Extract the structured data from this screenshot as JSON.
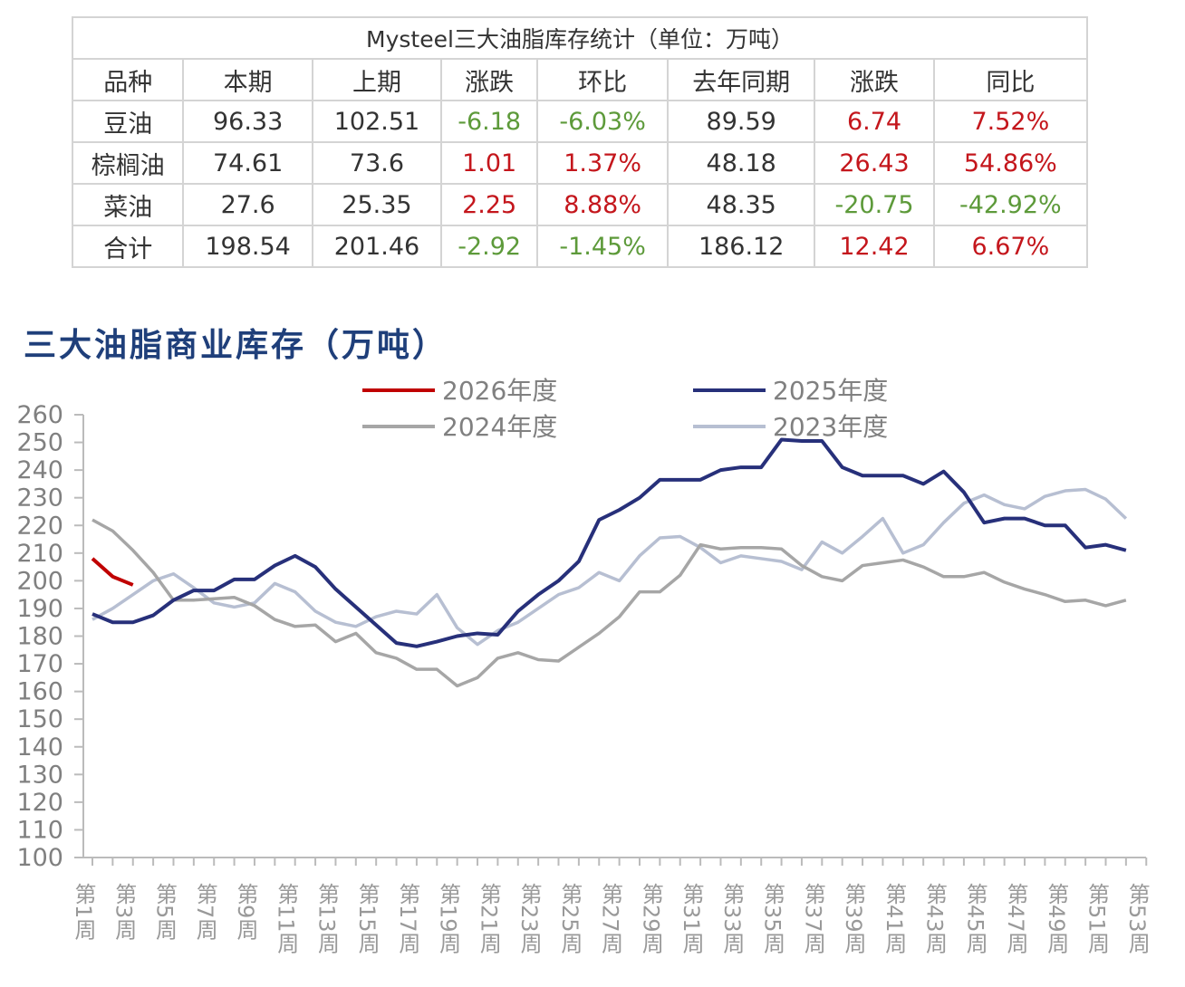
{
  "table": {
    "title": "Mysteel三大油脂库存统计（单位：万吨）",
    "headers": [
      "品种",
      "本期",
      "上期",
      "涨跌",
      "环比",
      "去年同期",
      "涨跌",
      "同比"
    ],
    "rows": [
      {
        "cells": [
          "豆油",
          "96.33",
          "102.51",
          "-6.18",
          "-6.03%",
          "89.59",
          "6.74",
          "7.52%"
        ]
      },
      {
        "cells": [
          "棕榈油",
          "74.61",
          "73.6",
          "1.01",
          "1.37%",
          "48.18",
          "26.43",
          "54.86%"
        ]
      },
      {
        "cells": [
          "菜油",
          "27.6",
          "25.35",
          "2.25",
          "8.88%",
          "48.35",
          "-20.75",
          "-42.92%"
        ]
      },
      {
        "cells": [
          "合计",
          "198.54",
          "201.46",
          "-2.92",
          "-1.45%",
          "186.12",
          "12.42",
          "6.67%"
        ]
      }
    ]
  },
  "colors": {
    "up": "#c4161c",
    "down": "#5d9a3a",
    "s2026": "#c00000",
    "s2025": "#27307a",
    "s2024": "#a6a6a6",
    "s2023": "#b7bfd2"
  },
  "chart_data": {
    "type": "line",
    "title": "三大油脂商业库存（万吨）",
    "ylim": [
      100,
      260
    ],
    "yticks": [
      "100",
      "110",
      "120",
      "130",
      "140",
      "150",
      "160",
      "170",
      "180",
      "190",
      "200",
      "210",
      "220",
      "230",
      "240",
      "250",
      "260"
    ],
    "x_labels": [
      "第1周",
      "第3周",
      "第5周",
      "第7周",
      "第9周",
      "第11周",
      "第13周",
      "第15周",
      "第17周",
      "第19周",
      "第21周",
      "第23周",
      "第25周",
      "第27周",
      "第29周",
      "第31周",
      "第33周",
      "第35周",
      "第37周",
      "第39周",
      "第41周",
      "第43周",
      "第45周",
      "第47周",
      "第49周",
      "第51周",
      "第53周"
    ],
    "legend_position": "top",
    "series": [
      {
        "name": "2026年度",
        "key": "s2026",
        "values": [
          208,
          201.5,
          198.5
        ]
      },
      {
        "name": "2025年度",
        "key": "s2025",
        "values": [
          188,
          185,
          185,
          187.5,
          193,
          196.5,
          196.5,
          200.5,
          200.5,
          205.5,
          209,
          205,
          197,
          190.5,
          184,
          177.5,
          176.3,
          178,
          180,
          181,
          180.5,
          189,
          195,
          200,
          207,
          222,
          225.6,
          230,
          236.5,
          236.5,
          236.5,
          240,
          241,
          241,
          251,
          250.5,
          250.5,
          241,
          238,
          238,
          238,
          235,
          239.5,
          232,
          221,
          222.5,
          222.5,
          220,
          220,
          212,
          213,
          211
        ]
      },
      {
        "name": "2024年度",
        "key": "s2024",
        "values": [
          222,
          218,
          211,
          203,
          193,
          193,
          193.5,
          194,
          191,
          186,
          183.5,
          184,
          178,
          181,
          174,
          172,
          168,
          168,
          162,
          165,
          172,
          174,
          171.5,
          171,
          176,
          181,
          187,
          196,
          196,
          202,
          213,
          211.5,
          212,
          212,
          211.5,
          205.5,
          201.5,
          200,
          205.5,
          206.5,
          207.5,
          205,
          201.5,
          201.5,
          203,
          199.5,
          197,
          195,
          192.5,
          193,
          191,
          193
        ]
      },
      {
        "name": "2023年度",
        "key": "s2023",
        "values": [
          186,
          190,
          195,
          200,
          202.5,
          197.5,
          192,
          190.5,
          192,
          199,
          196,
          189,
          185,
          183.5,
          187,
          189,
          188,
          195,
          183,
          177,
          182,
          185,
          190,
          195,
          197.5,
          203,
          200,
          209,
          215.5,
          216,
          212,
          206.5,
          209,
          208,
          207,
          204,
          214,
          210,
          216,
          222.5,
          210,
          213,
          221,
          228,
          231,
          227.5,
          226,
          230.5,
          232.5,
          233,
          229.5,
          222.5
        ]
      }
    ]
  }
}
